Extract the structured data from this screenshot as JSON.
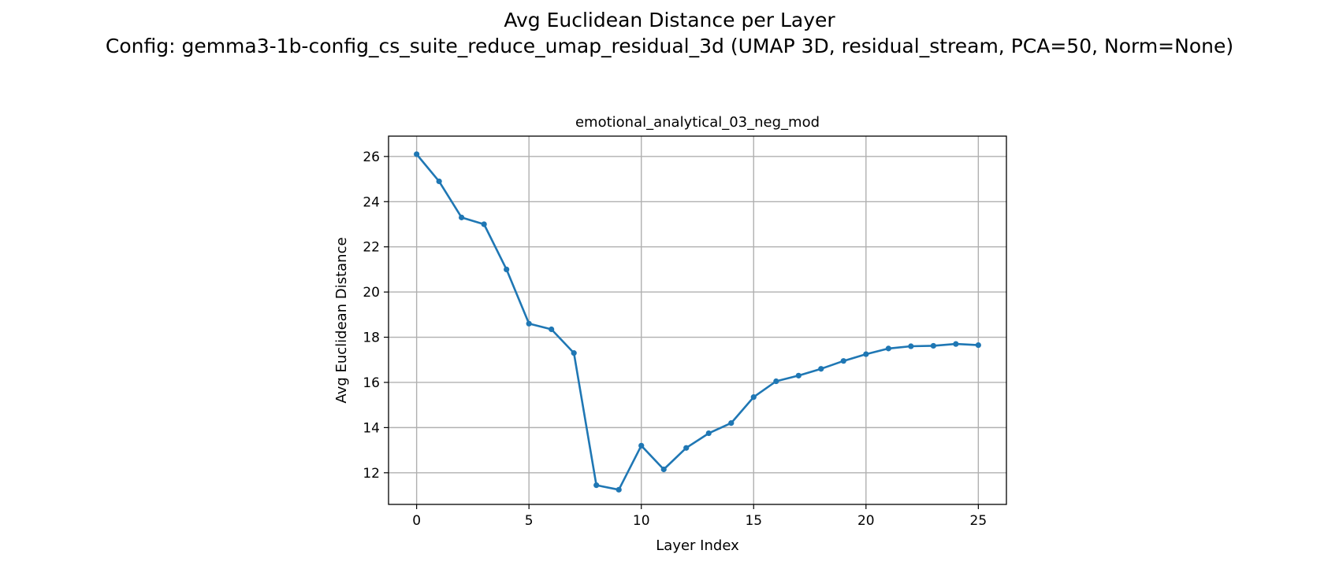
{
  "figure": {
    "title_line1": "Avg Euclidean Distance per Layer",
    "title_line2": "Config: gemma3-1b-config_cs_suite_reduce_umap_residual_3d (UMAP 3D, residual_stream, PCA=50, Norm=None)"
  },
  "chart_data": {
    "type": "line",
    "title": "emotional_analytical_03_neg_mod",
    "xlabel": "Layer Index",
    "ylabel": "Avg Euclidean Distance",
    "xlim": [
      -1.25,
      26.25
    ],
    "ylim": [
      10.6,
      26.9
    ],
    "xticks": [
      0,
      5,
      10,
      15,
      20,
      25
    ],
    "yticks": [
      12,
      14,
      16,
      18,
      20,
      22,
      24,
      26
    ],
    "grid": true,
    "color": "#1f77b4",
    "marker": "circle",
    "series": [
      {
        "x": [
          0,
          1,
          2,
          3,
          4,
          5,
          6,
          7,
          8,
          9,
          10,
          11,
          12,
          13,
          14,
          15,
          16,
          17,
          18,
          19,
          20,
          21,
          22,
          23,
          24,
          25
        ],
        "values": [
          26.1,
          24.9,
          23.3,
          23.0,
          21.0,
          18.6,
          18.35,
          17.3,
          11.45,
          11.25,
          13.2,
          12.15,
          13.1,
          13.75,
          14.2,
          15.35,
          16.05,
          16.3,
          16.6,
          16.95,
          17.25,
          17.5,
          17.6,
          17.62,
          17.7,
          17.65
        ]
      }
    ]
  }
}
